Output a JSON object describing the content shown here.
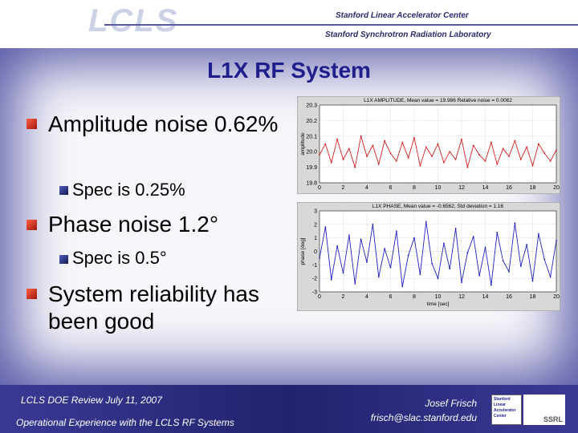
{
  "header": {
    "logo": "LCLS",
    "org1": "Stanford Linear Accelerator Center",
    "org2": "Stanford Synchrotron Radiation Laboratory"
  },
  "slide": {
    "title": "L1X RF System",
    "bullets": [
      {
        "text": "Amplitude noise 0.62%",
        "sub": [
          "Spec is 0.25%"
        ]
      },
      {
        "text": "Phase noise 1.2°",
        "sub": [
          "Spec is 0.5°"
        ]
      },
      {
        "text": "System reliability has been good"
      }
    ]
  },
  "footer": {
    "left1": "LCLS DOE Review  July 11, 2007",
    "left2": "Operational Experience with the LCLS RF Systems",
    "right1": "Josef Frisch",
    "right2": "frisch@slac.stanford.edu",
    "logo": "Stanford Linear Accelerator Center",
    "ssrl": "SSRL"
  },
  "chart_data": [
    {
      "type": "line",
      "title": "L1X AMPLITUDE, Mean value = 19.986 Relative noise = 0.0062",
      "ylabel": "amplitude",
      "x": [
        0,
        0.5,
        1,
        1.5,
        2,
        2.5,
        3,
        3.5,
        4,
        4.5,
        5,
        5.5,
        6,
        6.5,
        7,
        7.5,
        8,
        8.5,
        9,
        9.5,
        10,
        10.5,
        11,
        11.5,
        12,
        12.5,
        13,
        13.5,
        14,
        14.5,
        15,
        15.5,
        16,
        16.5,
        17,
        17.5,
        18,
        18.5,
        19,
        19.5,
        20
      ],
      "series": [
        {
          "color": "#d42020",
          "values": [
            19.98,
            20.05,
            19.93,
            20.08,
            19.95,
            20.02,
            19.9,
            20.1,
            19.97,
            20.04,
            19.92,
            20.07,
            19.99,
            19.94,
            20.06,
            19.96,
            20.09,
            19.91,
            20.03,
            19.97,
            20.05,
            19.93,
            20.0,
            19.95,
            20.08,
            19.9,
            20.04,
            19.98,
            19.94,
            20.06,
            19.92,
            20.02,
            19.97,
            20.07,
            19.95,
            20.03,
            19.91,
            20.05,
            19.99,
            19.94,
            20.01
          ]
        }
      ],
      "xlim": [
        0,
        20
      ],
      "xticks": [
        0,
        2,
        4,
        6,
        8,
        10,
        12,
        14,
        16,
        18,
        20
      ],
      "ylim": [
        19.8,
        20.3
      ],
      "yticks": [
        19.8,
        19.9,
        {
          "value": 20,
          "label": "20.0"
        },
        20.1,
        20.2,
        20.3
      ],
      "grid": true
    },
    {
      "type": "line",
      "title": "L1X PHASE, Mean value = -0.6562, Std deviation = 1.16",
      "ylabel": "phase [deg]",
      "xlabel": "time [sec]",
      "x": [
        0,
        0.5,
        1,
        1.5,
        2,
        2.5,
        3,
        3.5,
        4,
        4.5,
        5,
        5.5,
        6,
        6.5,
        7,
        7.5,
        8,
        8.5,
        9,
        9.5,
        10,
        10.5,
        11,
        11.5,
        12,
        12.5,
        13,
        13.5,
        14,
        14.5,
        15,
        15.5,
        16,
        16.5,
        17,
        17.5,
        18,
        18.5,
        19,
        19.5,
        20
      ],
      "series": [
        {
          "color": "#2020c0",
          "values": [
            -0.5,
            1.8,
            -2.1,
            0.4,
            -1.6,
            1.2,
            -2.4,
            0.9,
            -0.8,
            2.0,
            -1.9,
            0.2,
            -1.2,
            1.5,
            -2.6,
            -0.3,
            1.0,
            -1.7,
            2.2,
            -0.9,
            -2.0,
            0.6,
            -1.3,
            1.7,
            -2.3,
            -0.1,
            1.1,
            -1.8,
            0.3,
            -2.5,
            1.4,
            -0.7,
            -1.5,
            2.1,
            -1.1,
            0.5,
            -2.2,
            1.3,
            -0.6,
            -1.9,
            0.8
          ]
        }
      ],
      "xlim": [
        0,
        20
      ],
      "xticks": [
        0,
        2,
        4,
        6,
        8,
        10,
        12,
        14,
        16,
        18,
        20
      ],
      "ylim": [
        -3,
        3
      ],
      "yticks": [
        -3,
        -2,
        -1,
        0,
        1,
        2,
        3
      ],
      "grid": true
    }
  ]
}
